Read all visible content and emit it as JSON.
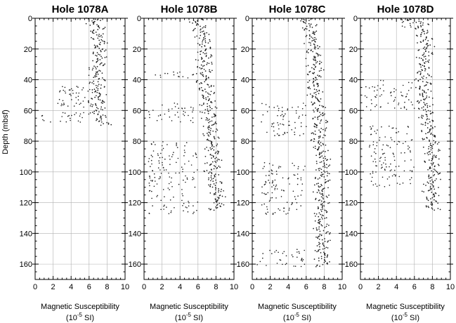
{
  "chart_data": {
    "type": "scatter",
    "ylabel": "Depth (mbsf)",
    "xlabel_line1": "Magnetic Susceptibility",
    "xlabel_line2": "(10",
    "xlabel_exp": "-5",
    "xlabel_unit": " SI)",
    "xlim": [
      0,
      10
    ],
    "ylim": [
      0,
      170
    ],
    "y_inverted": true,
    "x_ticks": [
      "0",
      "2",
      "4",
      "6",
      "8",
      "10"
    ],
    "y_ticks": [
      "0",
      "20",
      "40",
      "60",
      "80",
      "100",
      "120",
      "140",
      "160"
    ],
    "grid": true,
    "panels": [
      {
        "title": "Hole 1078A",
        "trend": [
          [
            0,
            6.2
          ],
          [
            5,
            6.8
          ],
          [
            10,
            6.9
          ],
          [
            15,
            7.2
          ],
          [
            20,
            7.0
          ],
          [
            25,
            7.1
          ],
          [
            30,
            6.9
          ],
          [
            35,
            6.7
          ],
          [
            40,
            7.0
          ],
          [
            45,
            6.8
          ],
          [
            50,
            7.0
          ],
          [
            55,
            7.2
          ],
          [
            60,
            7.0
          ],
          [
            65,
            7.4
          ],
          [
            68,
            7.6
          ],
          [
            70,
            7.5
          ]
        ],
        "scatter_halo": [
          [
            42,
            58,
            2.5,
            6.5
          ],
          [
            60,
            68,
            0.5,
            6.0
          ]
        ]
      },
      {
        "title": "Hole 1078B",
        "trend": [
          [
            0,
            5.8
          ],
          [
            10,
            6.5
          ],
          [
            20,
            6.8
          ],
          [
            30,
            6.7
          ],
          [
            40,
            6.6
          ],
          [
            50,
            7.0
          ],
          [
            60,
            7.2
          ],
          [
            70,
            7.3
          ],
          [
            80,
            7.4
          ],
          [
            90,
            7.8
          ],
          [
            100,
            7.5
          ],
          [
            110,
            8.0
          ],
          [
            120,
            8.2
          ],
          [
            125,
            8.0
          ]
        ],
        "scatter_halo": [
          [
            35,
            40,
            1.0,
            5.5
          ],
          [
            55,
            68,
            0.5,
            5.5
          ],
          [
            80,
            128,
            0.5,
            6.0
          ]
        ]
      },
      {
        "title": "Hole 1078C",
        "trend": [
          [
            0,
            6.0
          ],
          [
            10,
            6.6
          ],
          [
            20,
            6.8
          ],
          [
            30,
            7.0
          ],
          [
            40,
            6.9
          ],
          [
            50,
            7.0
          ],
          [
            60,
            7.4
          ],
          [
            70,
            7.5
          ],
          [
            80,
            7.4
          ],
          [
            90,
            7.8
          ],
          [
            100,
            8.0
          ],
          [
            110,
            7.6
          ],
          [
            120,
            7.8
          ],
          [
            130,
            7.6
          ],
          [
            140,
            7.7
          ],
          [
            150,
            7.8
          ],
          [
            160,
            7.9
          ],
          [
            162,
            7.8
          ]
        ],
        "scatter_halo": [
          [
            55,
            77,
            1.0,
            6.0
          ],
          [
            94,
            128,
            1.0,
            6.0
          ],
          [
            150,
            162,
            0.5,
            6.0
          ]
        ]
      },
      {
        "title": "Hole 1078D",
        "trend": [
          [
            2,
            6.6
          ],
          [
            10,
            7.0
          ],
          [
            20,
            7.3
          ],
          [
            30,
            7.0
          ],
          [
            40,
            7.0
          ],
          [
            50,
            7.1
          ],
          [
            60,
            7.3
          ],
          [
            70,
            7.5
          ],
          [
            80,
            7.8
          ],
          [
            90,
            8.0
          ],
          [
            100,
            8.1
          ],
          [
            110,
            7.8
          ],
          [
            120,
            8.0
          ],
          [
            125,
            8.0
          ]
        ],
        "scatter_halo": [
          [
            40,
            60,
            0.5,
            6.0
          ],
          [
            70,
            110,
            1.0,
            6.0
          ],
          [
            0,
            6,
            4.5,
            6.0
          ]
        ]
      }
    ]
  }
}
